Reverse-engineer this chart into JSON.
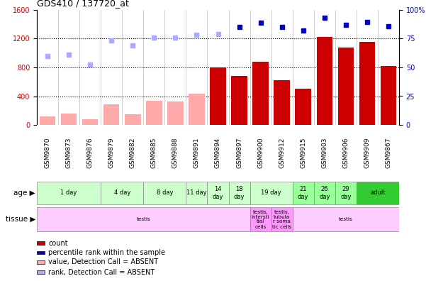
{
  "title": "GDS410 / 137720_at",
  "samples": [
    "GSM9870",
    "GSM9873",
    "GSM9876",
    "GSM9879",
    "GSM9882",
    "GSM9885",
    "GSM9888",
    "GSM9891",
    "GSM9894",
    "GSM9897",
    "GSM9900",
    "GSM9912",
    "GSM9915",
    "GSM9903",
    "GSM9906",
    "GSM9909",
    "GSM9867"
  ],
  "count_values": [
    null,
    null,
    null,
    null,
    null,
    null,
    null,
    null,
    800,
    680,
    880,
    620,
    500,
    1220,
    1080,
    1160,
    820
  ],
  "count_absent": [
    120,
    155,
    80,
    290,
    145,
    340,
    330,
    430,
    null,
    null,
    null,
    null,
    null,
    null,
    null,
    null,
    null
  ],
  "percentile_values": [
    null,
    null,
    null,
    null,
    null,
    null,
    null,
    null,
    null,
    1360,
    1420,
    1360,
    1310,
    1490,
    1390,
    1430,
    1370
  ],
  "percentile_absent": [
    960,
    980,
    840,
    1180,
    1110,
    1210,
    1215,
    1255,
    1260,
    null,
    null,
    null,
    null,
    null,
    null,
    null,
    null
  ],
  "ylim_left": [
    0,
    1600
  ],
  "ylim_right": [
    0,
    100
  ],
  "left_ticks": [
    0,
    400,
    800,
    1200,
    1600
  ],
  "right_tick_labels": [
    "0",
    "25",
    "50",
    "75",
    "100%"
  ],
  "right_tick_vals": [
    0,
    25,
    50,
    75,
    100
  ],
  "age_groups": [
    {
      "label": "1 day",
      "start": 0,
      "end": 3,
      "color": "#ccffcc"
    },
    {
      "label": "4 day",
      "start": 3,
      "end": 5,
      "color": "#ccffcc"
    },
    {
      "label": "8 day",
      "start": 5,
      "end": 7,
      "color": "#ccffcc"
    },
    {
      "label": "11 day",
      "start": 7,
      "end": 8,
      "color": "#ccffcc"
    },
    {
      "label": "14\nday",
      "start": 8,
      "end": 9,
      "color": "#ccffcc"
    },
    {
      "label": "18\nday",
      "start": 9,
      "end": 10,
      "color": "#ccffcc"
    },
    {
      "label": "19 day",
      "start": 10,
      "end": 12,
      "color": "#ccffcc"
    },
    {
      "label": "21\nday",
      "start": 12,
      "end": 13,
      "color": "#99ff99"
    },
    {
      "label": "26\nday",
      "start": 13,
      "end": 14,
      "color": "#99ff99"
    },
    {
      "label": "29\nday",
      "start": 14,
      "end": 15,
      "color": "#99ff99"
    },
    {
      "label": "adult",
      "start": 15,
      "end": 17,
      "color": "#33cc33"
    }
  ],
  "tissue_groups": [
    {
      "label": "testis",
      "start": 0,
      "end": 10,
      "color": "#ffccff"
    },
    {
      "label": "testis,\nintersti\ntial\ncells",
      "start": 10,
      "end": 11,
      "color": "#ff99ff"
    },
    {
      "label": "testis,\ntubula\nr soma\ntic cells",
      "start": 11,
      "end": 12,
      "color": "#ff99ff"
    },
    {
      "label": "testis",
      "start": 12,
      "end": 17,
      "color": "#ffccff"
    }
  ],
  "color_count": "#cc0000",
  "color_percentile": "#0000cc",
  "color_absent_count": "#ffaaaa",
  "color_absent_percentile": "#aaaaff",
  "bg_color": "#ffffff",
  "xticklabel_bg": "#dddddd"
}
